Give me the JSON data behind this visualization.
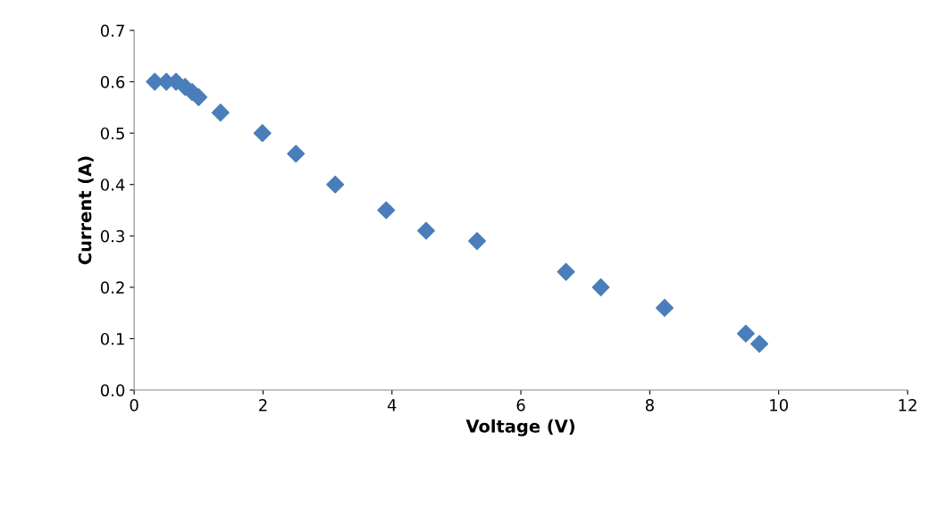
{
  "chart_data": {
    "type": "scatter",
    "xlabel": "Voltage (V)",
    "ylabel": "Current (A)",
    "x": [
      0.32,
      0.5,
      0.65,
      0.79,
      0.9,
      1.0,
      1.34,
      1.99,
      2.51,
      3.12,
      3.91,
      4.53,
      5.32,
      6.7,
      7.24,
      8.23,
      9.49,
      9.7
    ],
    "series": [
      {
        "color": "#4a7ebb",
        "values": [
          0.6,
          0.6,
          0.6,
          0.59,
          0.58,
          0.57,
          0.54,
          0.5,
          0.46,
          0.4,
          0.35,
          0.31,
          0.29,
          0.23,
          0.2,
          0.16,
          0.11,
          0.09
        ]
      }
    ],
    "xlim": [
      0,
      12
    ],
    "xticks": [
      0,
      2,
      4,
      6,
      8,
      10,
      12
    ],
    "ylim": [
      0,
      0.7
    ],
    "yticks": [
      {
        "value": 0,
        "label": "0.0"
      },
      0.1,
      0.2,
      0.3,
      0.4,
      0.5,
      0.6,
      0.7
    ],
    "marker": "diamond",
    "grid": false,
    "legend": false
  }
}
